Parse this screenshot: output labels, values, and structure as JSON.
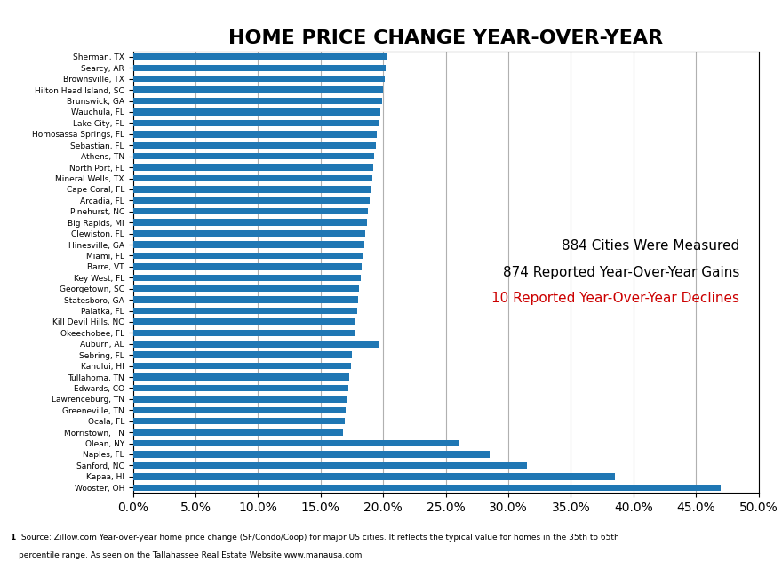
{
  "chart_data": {
    "type": "bar",
    "orientation": "horizontal",
    "title": "HOME PRICE CHANGE YEAR-OVER-YEAR",
    "categories": [
      "Sherman, TX",
      "Searcy, AR",
      "Brownsville, TX",
      "Hilton Head Island, SC",
      "Brunswick, GA",
      "Wauchula, FL",
      "Lake City, FL",
      "Homosassa Springs, FL",
      "Sebastian, FL",
      "Athens, TN",
      "North Port, FL",
      "Mineral Wells, TX",
      "Cape Coral, FL",
      "Arcadia, FL",
      "Pinehurst, NC",
      "Big Rapids, MI",
      "Clewiston, FL",
      "Hinesville, GA",
      "Miami, FL",
      "Barre, VT",
      "Key West, FL",
      "Georgetown, SC",
      "Statesboro, GA",
      "Palatka, FL",
      "Kill Devil Hills, NC",
      "Okeechobee, FL",
      "Auburn, AL",
      "Sebring, FL",
      "Kahului, HI",
      "Tullahoma, TN",
      "Edwards, CO",
      "Lawrenceburg, TN",
      "Greeneville, TN",
      "Ocala, FL",
      "Morristown, TN",
      "Olean, NY",
      "Naples, FL",
      "Sanford, NC",
      "Kapaa, HI",
      "Wooster, OH"
    ],
    "values": [
      20.3,
      20.2,
      20.1,
      20.0,
      19.9,
      19.8,
      19.7,
      19.5,
      19.4,
      19.3,
      19.2,
      19.1,
      19.0,
      18.9,
      18.8,
      18.7,
      18.6,
      18.5,
      18.4,
      18.3,
      18.2,
      18.1,
      18.0,
      17.9,
      17.8,
      17.7,
      19.6,
      17.5,
      17.4,
      17.3,
      17.2,
      17.1,
      17.0,
      16.9,
      16.8,
      26.0,
      28.5,
      31.5,
      38.5,
      47.0
    ],
    "xlim": [
      0,
      50
    ],
    "xticks": [
      {
        "value": 0,
        "label": "0.0%"
      },
      {
        "value": 5,
        "label": "5.0%"
      },
      {
        "value": 10,
        "label": "10.0%"
      },
      {
        "value": 15,
        "label": "15.0%"
      },
      {
        "value": 20,
        "label": "20.0%"
      },
      {
        "value": 25,
        "label": "25.0%"
      },
      {
        "value": 30,
        "label": "30.0%"
      },
      {
        "value": 35,
        "label": "35.0%"
      },
      {
        "value": 40,
        "label": "40.0%"
      },
      {
        "value": 45,
        "label": "45.0%"
      },
      {
        "value": 50,
        "label": "50.0%"
      }
    ],
    "grid": true,
    "annotations": [
      {
        "text": "884 Cities Were Measured"
      },
      {
        "text": "874 Reported Year-Over-Year Gains"
      },
      {
        "text": "10 Reported Year-Over-Year Declines",
        "color": "#cc0000"
      }
    ],
    "source_marker": "1",
    "source_lines": [
      " Source: Zillow.com Year-over-year home price change (SF/Condo/Coop) for major US cities. It reflects the typical value for homes in the 35th to 65th",
      "percentile range. As seen on the Tallahassee Real Estate Website www.manausa.com"
    ]
  }
}
